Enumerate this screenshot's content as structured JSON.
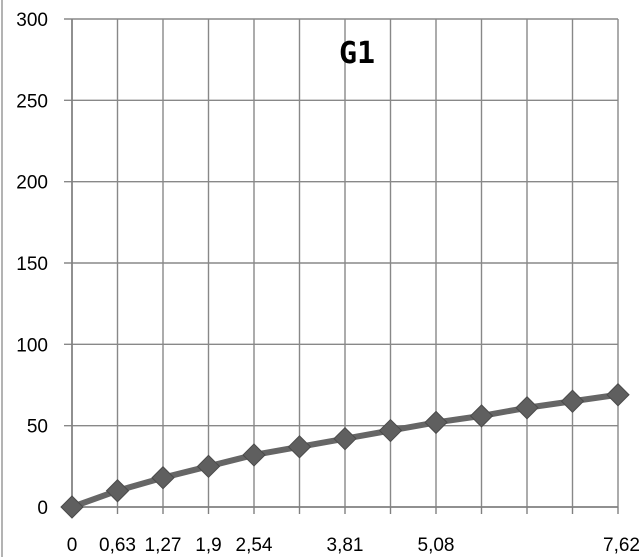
{
  "chart_data": {
    "type": "line",
    "title": "G1",
    "xlabel": "",
    "ylabel": "",
    "ylim": [
      0,
      300
    ],
    "yticks": [
      0,
      50,
      100,
      150,
      200,
      250,
      300
    ],
    "x_tick_labels": [
      "0",
      "0,63",
      "1,27",
      "1,9",
      "2,54",
      "",
      "3,81",
      "",
      "5,08",
      "",
      "",
      "",
      "7,62"
    ],
    "grid": true,
    "legend": "none",
    "colors": {
      "line": "#666666",
      "grid": "#888888",
      "axis": "#888888"
    },
    "series": [
      {
        "values": [
          0,
          10,
          18,
          25,
          32,
          37,
          42,
          47,
          52,
          56,
          61,
          65,
          69
        ]
      }
    ]
  }
}
